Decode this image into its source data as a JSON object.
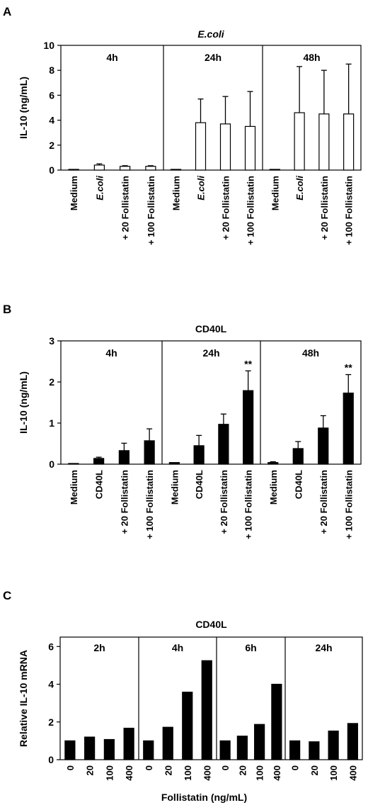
{
  "chart_data": [
    {
      "panel": "A",
      "type": "bar",
      "title": "E.coli",
      "ylabel": "IL-10 (ng/mL)",
      "ylim": [
        0,
        10
      ],
      "yticks": [
        "0",
        "2",
        "4",
        "6",
        "8",
        "10"
      ],
      "bar_fill": "#ffffff",
      "bar_stroke": "#000000",
      "groups": [
        {
          "label": "4h",
          "categories": [
            "Medium",
            "E.coli",
            "+ 20 Follistatin",
            "+ 100 Follistatin"
          ],
          "values": [
            0,
            0.4,
            0.3,
            0.3
          ],
          "errors": [
            0,
            0.1,
            0.05,
            0.05
          ]
        },
        {
          "label": "24h",
          "categories": [
            "Medium",
            "E.coli",
            "+ 20 Follistatin",
            "+ 100 Follistatin"
          ],
          "values": [
            0.05,
            3.8,
            3.7,
            3.5
          ],
          "errors": [
            0,
            1.9,
            2.2,
            2.8
          ]
        },
        {
          "label": "48h",
          "categories": [
            "Medium",
            "E.coli",
            "+ 20 Follistatin",
            "+ 100 Follistatin"
          ],
          "values": [
            0.05,
            4.6,
            4.5,
            4.5
          ],
          "errors": [
            0,
            3.7,
            3.5,
            4.0
          ]
        }
      ],
      "annotations": []
    },
    {
      "panel": "B",
      "type": "bar",
      "title": "CD40L",
      "ylabel": "IL-10 (ng/mL)",
      "ylim": [
        0,
        3
      ],
      "yticks": [
        "0",
        "1",
        "2",
        "3"
      ],
      "bar_fill": "#000000",
      "bar_stroke": "#000000",
      "groups": [
        {
          "label": "4h",
          "categories": [
            "Medium",
            "CD40L",
            "+ 20 Follistatin",
            "+ 100 Follistatin"
          ],
          "values": [
            0.01,
            0.14,
            0.33,
            0.57
          ],
          "errors": [
            0,
            0.03,
            0.18,
            0.29
          ]
        },
        {
          "label": "24h",
          "categories": [
            "Medium",
            "CD40L",
            "+ 20 Follistatin",
            "+ 100 Follistatin"
          ],
          "values": [
            0.04,
            0.45,
            0.97,
            1.79
          ],
          "errors": [
            0,
            0.25,
            0.25,
            0.48
          ]
        },
        {
          "label": "48h",
          "categories": [
            "Medium",
            "CD40L",
            "+ 20 Follistatin",
            "+ 100 Follistatin"
          ],
          "values": [
            0.04,
            0.38,
            0.88,
            1.73
          ],
          "errors": [
            0.02,
            0.17,
            0.3,
            0.45
          ]
        }
      ],
      "annotations": [
        {
          "group": 1,
          "bar": 3,
          "text": "**"
        },
        {
          "group": 2,
          "bar": 3,
          "text": "**"
        }
      ]
    },
    {
      "panel": "C",
      "type": "bar",
      "title": "CD40L",
      "ylabel": "Relative IL-10 mRNA",
      "xlabel": "Follistatin (ng/mL)",
      "ylim": [
        0,
        6.5
      ],
      "yticks": [
        "0",
        "2",
        "4",
        "6"
      ],
      "bar_fill": "#000000",
      "bar_stroke": "#000000",
      "groups": [
        {
          "label": "2h",
          "categories": [
            "0",
            "20",
            "100",
            "400"
          ],
          "values": [
            1.0,
            1.2,
            1.07,
            1.67
          ],
          "errors": []
        },
        {
          "label": "4h",
          "categories": [
            "0",
            "20",
            "100",
            "400"
          ],
          "values": [
            1.0,
            1.72,
            3.58,
            5.25
          ],
          "errors": []
        },
        {
          "label": "6h",
          "categories": [
            "0",
            "20",
            "100",
            "400"
          ],
          "values": [
            1.0,
            1.25,
            1.87,
            4.0
          ],
          "errors": []
        },
        {
          "label": "24h",
          "categories": [
            "0",
            "20",
            "100",
            "400"
          ],
          "values": [
            1.0,
            0.95,
            1.52,
            1.92
          ],
          "errors": []
        }
      ],
      "annotations": []
    }
  ],
  "panel_letters": [
    "A",
    "B",
    "C"
  ]
}
